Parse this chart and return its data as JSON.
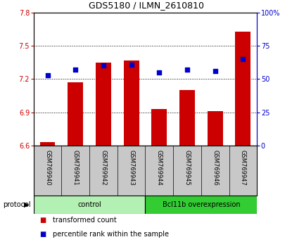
{
  "title": "GDS5180 / ILMN_2610810",
  "samples": [
    "GSM769940",
    "GSM769941",
    "GSM769942",
    "GSM769943",
    "GSM769944",
    "GSM769945",
    "GSM769946",
    "GSM769947"
  ],
  "transformed_counts": [
    6.63,
    7.17,
    7.35,
    7.37,
    6.93,
    7.1,
    6.91,
    7.63
  ],
  "percentile_ranks": [
    53,
    57,
    60,
    61,
    55,
    57,
    56,
    65
  ],
  "ylim_left": [
    6.6,
    7.8
  ],
  "ylim_right": [
    0,
    100
  ],
  "yticks_left": [
    6.6,
    6.9,
    7.2,
    7.5,
    7.8
  ],
  "yticks_right": [
    0,
    25,
    50,
    75,
    100
  ],
  "bar_color": "#cc0000",
  "dot_color": "#0000cc",
  "bar_width": 0.55,
  "dot_size": 22,
  "grid_color": "black",
  "groups": [
    {
      "label": "control",
      "indices": [
        0,
        1,
        2,
        3
      ],
      "color": "#b3f0b3"
    },
    {
      "label": "Bcl11b overexpression",
      "indices": [
        4,
        5,
        6,
        7
      ],
      "color": "#33cc33"
    }
  ],
  "protocol_label": "protocol",
  "legend_items": [
    {
      "label": "transformed count",
      "color": "#cc0000"
    },
    {
      "label": "percentile rank within the sample",
      "color": "#0000cc"
    }
  ],
  "tick_label_color_left": "#cc0000",
  "tick_label_color_right": "#0000cc",
  "label_area_bg": "#c8c8c8",
  "title_fontsize": 9,
  "tick_fontsize": 7,
  "sample_fontsize": 6,
  "legend_fontsize": 7,
  "protocol_fontsize": 7,
  "group_label_fontsize": 7
}
